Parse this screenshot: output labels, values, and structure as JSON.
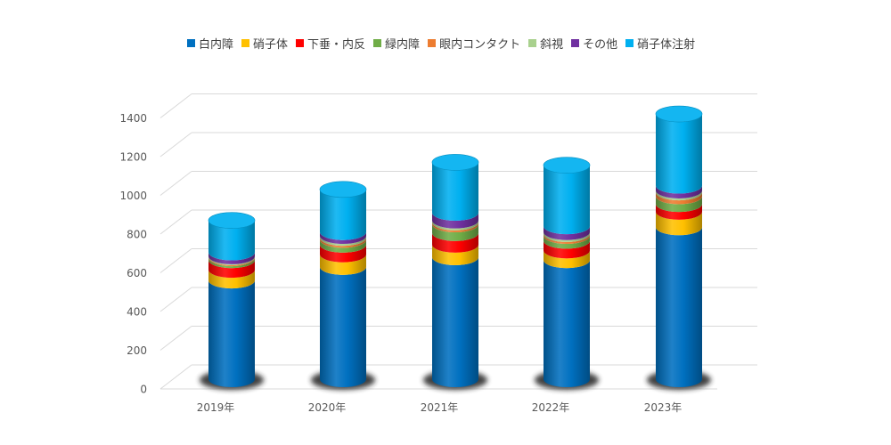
{
  "chart_data": {
    "type": "bar",
    "stacked": true,
    "style": "3d-cylinder",
    "categories": [
      "2019年",
      "2020年",
      "2021年",
      "2022年",
      "2023年"
    ],
    "ylim": [
      0,
      1400
    ],
    "yticks": [
      0,
      200,
      400,
      600,
      800,
      1000,
      1200,
      1400
    ],
    "grid": true,
    "legend_position": "top",
    "series": [
      {
        "name": "白内障",
        "color": "#0070C0",
        "values": [
          510,
          580,
          630,
          615,
          785
        ]
      },
      {
        "name": "硝子体",
        "color": "#FFC000",
        "values": [
          55,
          65,
          65,
          50,
          80
        ]
      },
      {
        "name": "下垂・内反",
        "color": "#FF0000",
        "values": [
          50,
          50,
          60,
          50,
          40
        ]
      },
      {
        "name": "緑内障",
        "color": "#70AD47",
        "values": [
          10,
          25,
          45,
          25,
          40
        ]
      },
      {
        "name": "眼内コンタクト",
        "color": "#ED7D31",
        "values": [
          5,
          10,
          10,
          10,
          20
        ]
      },
      {
        "name": "斜視",
        "color": "#A9D18E",
        "values": [
          5,
          10,
          10,
          10,
          10
        ]
      },
      {
        "name": "その他",
        "color": "#7030A0",
        "values": [
          20,
          20,
          40,
          30,
          25
        ]
      },
      {
        "name": "硝子体注射",
        "color": "#00B0F0",
        "values": [
          165,
          220,
          260,
          315,
          370
        ]
      }
    ]
  }
}
